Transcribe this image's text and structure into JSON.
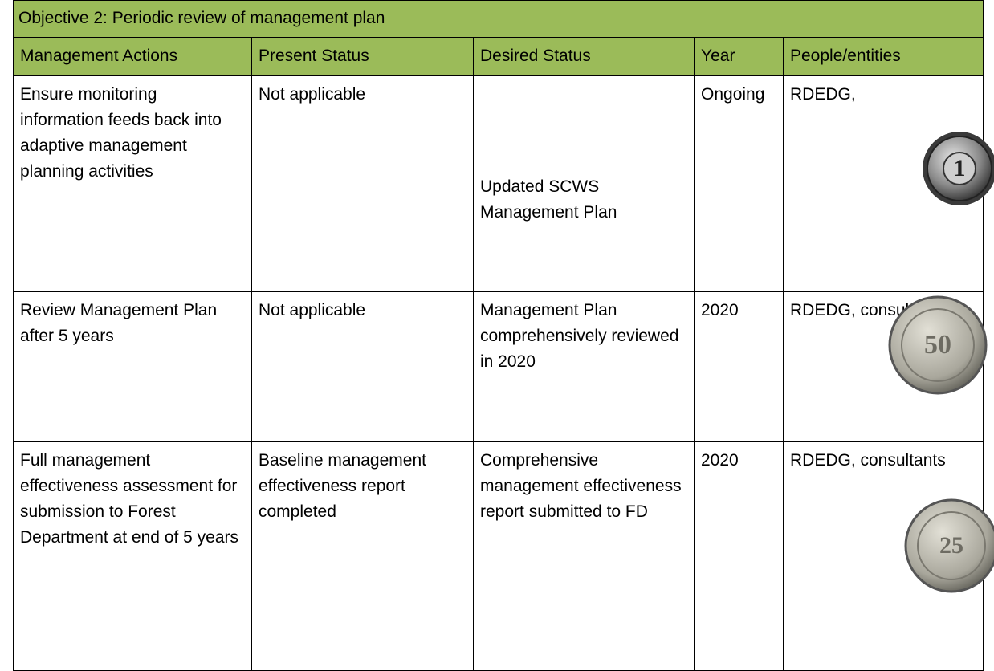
{
  "title": "Objective 2: Periodic review of management plan",
  "table": {
    "header": [
      "Management Actions",
      "Present Status",
      "Desired Status",
      "Year",
      "People/entities"
    ],
    "rows": [
      [
        "Ensure monitoring information feeds back into adaptive management planning activities",
        "Not applicable",
        "Updated SCWS Management Plan",
        "Ongoing",
        "RDEDG,"
      ],
      [
        "Review Management Plan after 5 years",
        "Not applicable",
        "Management Plan comprehensively reviewed in 2020",
        "2020",
        "RDEDG, consultants"
      ],
      [
        "Full management effectiveness assessment for submission to Forest Department at end of 5 years",
        "Baseline management effectiveness report completed",
        "Comprehensive management effectiveness report submitted to FD",
        "2020",
        "RDEDG, consultants"
      ]
    ]
  },
  "coins": [
    {
      "label": "1"
    },
    {
      "label": "50"
    },
    {
      "label": "25"
    }
  ]
}
